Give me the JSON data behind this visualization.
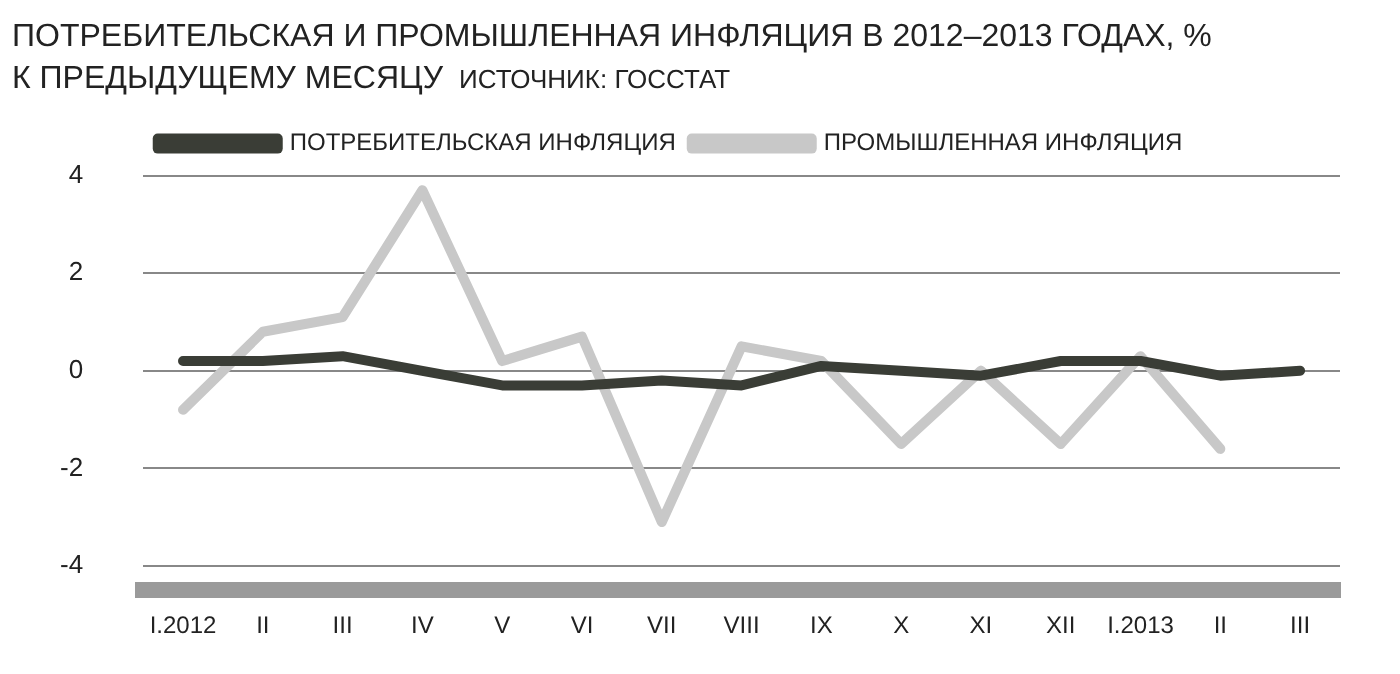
{
  "chart_data": {
    "type": "line",
    "title": "ПОТРЕБИТЕЛЬСКАЯ И ПРОМЫШЛЕННАЯ ИНФЛЯЦИЯ В 2012–2013 ГОДАХ, % К ПРЕДЫДУЩЕМУ МЕСЯЦУ",
    "annotations": [
      "ИСТОЧНИК: ГОССТАТ"
    ],
    "categories": [
      "I.2012",
      "II",
      "III",
      "IV",
      "V",
      "VI",
      "VII",
      "VIII",
      "IX",
      "X",
      "XI",
      "XII",
      "I.2013",
      "II",
      "III"
    ],
    "series": [
      {
        "name": "ПОТРЕБИТЕЛЬСКАЯ ИНФЛЯЦИЯ",
        "color": "#3a3d36",
        "values": [
          0.2,
          0.2,
          0.3,
          0.0,
          -0.3,
          -0.3,
          -0.2,
          -0.3,
          0.1,
          0.0,
          -0.1,
          0.2,
          0.2,
          -0.1,
          0.0
        ]
      },
      {
        "name": "ПРОМЫШЛЕННАЯ ИНФЛЯЦИЯ",
        "color": "#c8c8c8",
        "values": [
          -0.8,
          0.8,
          1.1,
          3.7,
          0.2,
          0.7,
          -3.1,
          0.5,
          0.2,
          -1.5,
          0.0,
          -1.5,
          0.3,
          -1.6,
          null
        ]
      }
    ],
    "ylim": [
      -4.5,
      4
    ],
    "yticks": [
      -4,
      -2,
      0,
      2,
      4
    ],
    "grid": "y",
    "legend": "top",
    "marker": "none",
    "line_style": "solid"
  }
}
